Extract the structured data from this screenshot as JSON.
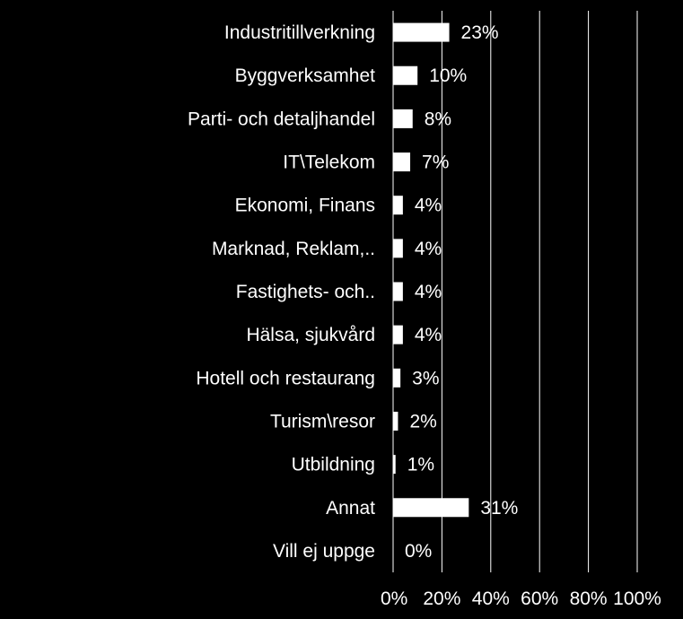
{
  "chart_data": {
    "type": "bar",
    "orientation": "horizontal",
    "categories": [
      "Industritillverkning",
      "Byggverksamhet",
      "Parti- och detaljhandel",
      "IT\\Telekom",
      "Ekonomi, Finans",
      "Marknad, Reklam,..",
      "Fastighets- och..",
      "Hälsa, sjukvård",
      "Hotell och restaurang",
      "Turism\\resor",
      "Utbildning",
      "Annat",
      "Vill ej uppge"
    ],
    "values": [
      23,
      10,
      8,
      7,
      4,
      4,
      4,
      4,
      3,
      2,
      1,
      31,
      0
    ],
    "data_labels": [
      "23%",
      "10%",
      "8%",
      "7%",
      "4%",
      "4%",
      "4%",
      "4%",
      "3%",
      "2%",
      "1%",
      "31%",
      "0%"
    ],
    "x_ticks": [
      0,
      20,
      40,
      60,
      80,
      100
    ],
    "x_tick_labels": [
      "0%",
      "20%",
      "40%",
      "60%",
      "80%",
      "100%"
    ],
    "xlim": [
      0,
      100
    ],
    "title": "",
    "xlabel": "",
    "ylabel": "",
    "grid": true,
    "legend": "none",
    "colors": {
      "background": "#000000",
      "bar": "#ffffff",
      "text": "#ffffff",
      "grid": "#ffffff"
    }
  }
}
